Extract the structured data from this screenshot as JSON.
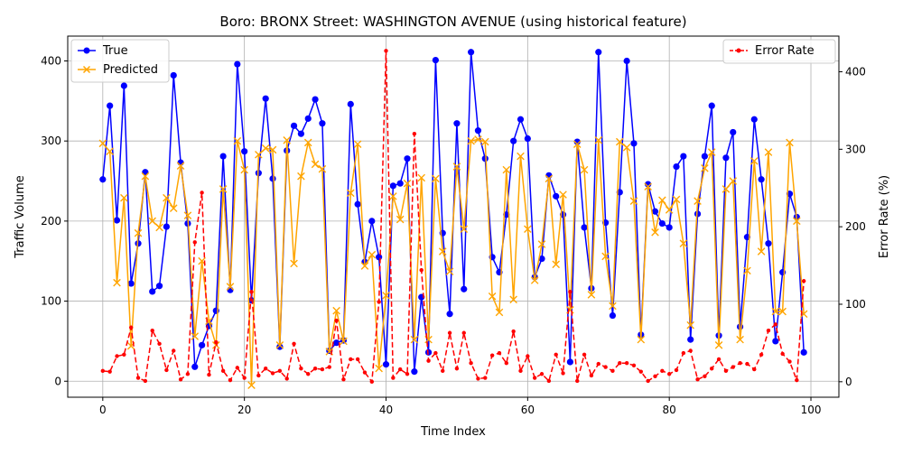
{
  "chart_data": {
    "type": "line",
    "title": "Boro: BRONX Street: WASHINGTON AVENUE (using historical feature)",
    "xlabel": "Time Index",
    "ylabel": "Traffic Volume",
    "y2label": "Error Rate (%)",
    "xlim": [
      -4.95,
      103.95
    ],
    "ylim": [
      -20,
      431
    ],
    "y2lim": [
      -20,
      446
    ],
    "x_ticks": [
      0,
      20,
      40,
      60,
      80,
      100
    ],
    "y_ticks": [
      0,
      100,
      200,
      300,
      400
    ],
    "y2_ticks": [
      0,
      100,
      200,
      300,
      400
    ],
    "grid": true,
    "legend_left_position": "upper-left",
    "legend_right_position": "upper-right",
    "x": [
      0,
      1,
      2,
      3,
      4,
      5,
      6,
      7,
      8,
      9,
      10,
      11,
      12,
      13,
      14,
      15,
      16,
      17,
      18,
      19,
      20,
      21,
      22,
      23,
      24,
      25,
      26,
      27,
      28,
      29,
      30,
      31,
      32,
      33,
      34,
      35,
      36,
      37,
      38,
      39,
      40,
      41,
      42,
      43,
      44,
      45,
      46,
      47,
      48,
      49,
      50,
      51,
      52,
      53,
      54,
      55,
      56,
      57,
      58,
      59,
      60,
      61,
      62,
      63,
      64,
      65,
      66,
      67,
      68,
      69,
      70,
      71,
      72,
      73,
      74,
      75,
      76,
      77,
      78,
      79,
      80,
      81,
      82,
      83,
      84,
      85,
      86,
      87,
      88,
      89,
      90,
      91,
      92,
      93,
      94,
      95,
      96,
      97,
      98,
      99
    ],
    "series": [
      {
        "name": "True",
        "axis": "left",
        "color": "#0000ff",
        "marker": "circle",
        "values": [
          252,
          344,
          201,
          369,
          122,
          172,
          261,
          112,
          119,
          193,
          382,
          273,
          197,
          18,
          45,
          69,
          88,
          281,
          114,
          396,
          287,
          101,
          260,
          353,
          253,
          43,
          288,
          319,
          309,
          328,
          352,
          322,
          38,
          48,
          51,
          346,
          221,
          149,
          200,
          155,
          21,
          244,
          247,
          278,
          12,
          105,
          36,
          401,
          185,
          84,
          322,
          115,
          411,
          313,
          278,
          155,
          136,
          208,
          300,
          327,
          303,
          130,
          153,
          257,
          231,
          208,
          24,
          299,
          192,
          116,
          411,
          198,
          82,
          236,
          400,
          297,
          58,
          246,
          212,
          197,
          192,
          268,
          281,
          52,
          209,
          281,
          344,
          57,
          279,
          311,
          68,
          180,
          327,
          252,
          172,
          50,
          136,
          234,
          205,
          36
        ]
      },
      {
        "name": "Predicted",
        "axis": "left",
        "color": "#ffa500",
        "marker": "x",
        "values": [
          297,
          287,
          123,
          229,
          44,
          185,
          256,
          200,
          192,
          229,
          216,
          269,
          207,
          56,
          150,
          75,
          45,
          240,
          118,
          300,
          264,
          -5,
          283,
          291,
          289,
          45,
          301,
          147,
          256,
          298,
          271,
          265,
          37,
          88,
          50,
          235,
          296,
          144,
          158,
          16,
          107,
          231,
          202,
          247,
          52,
          254,
          52,
          253,
          162,
          137,
          268,
          190,
          300,
          302,
          299,
          106,
          86,
          264,
          102,
          281,
          190,
          126,
          171,
          253,
          146,
          233,
          89,
          296,
          264,
          108,
          301,
          156,
          94,
          299,
          292,
          225,
          52,
          243,
          186,
          226,
          214,
          227,
          172,
          70,
          225,
          266,
          286,
          45,
          240,
          250,
          52,
          138,
          275,
          162,
          286,
          87,
          87,
          298,
          200,
          84
        ]
      },
      {
        "name": "Error Rate",
        "axis": "right",
        "color": "#ff0000",
        "marker": "dot",
        "dashed": true,
        "values": [
          14,
          13,
          33,
          35,
          70,
          5,
          1,
          66,
          49,
          15,
          40,
          3,
          10,
          180,
          244,
          9,
          51,
          14,
          2,
          18,
          5,
          116,
          8,
          17,
          11,
          14,
          4,
          49,
          17,
          10,
          17,
          16,
          19,
          79,
          3,
          29,
          29,
          12,
          0,
          103,
          427,
          5,
          16,
          10,
          320,
          144,
          27,
          37,
          14,
          63,
          17,
          63,
          24,
          4,
          5,
          34,
          37,
          24,
          65,
          14,
          33,
          5,
          10,
          1,
          35,
          11,
          116,
          1,
          35,
          8,
          23,
          19,
          14,
          24,
          24,
          21,
          13,
          1,
          7,
          14,
          10,
          15,
          37,
          40,
          3,
          7,
          17,
          29,
          14,
          19,
          24,
          23,
          16,
          35,
          66,
          74,
          36,
          26,
          2,
          130
        ]
      }
    ]
  }
}
